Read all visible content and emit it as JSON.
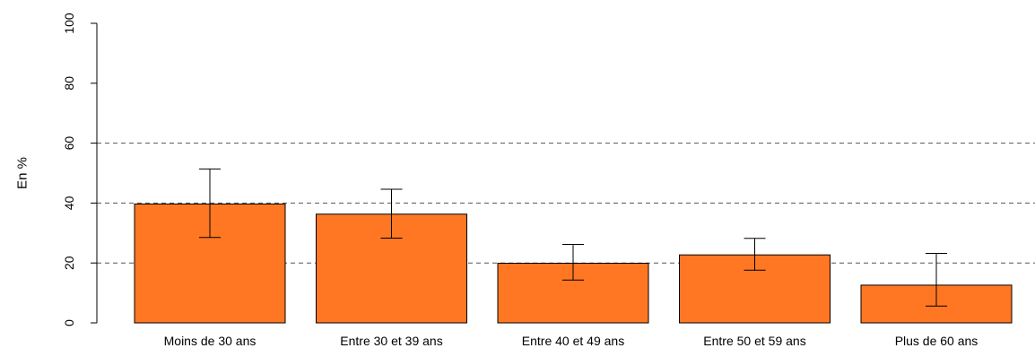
{
  "chart_data": {
    "type": "bar",
    "ylabel": "En %",
    "ylim": [
      0,
      100
    ],
    "yticks": [
      "0",
      "20",
      "40",
      "60",
      "80",
      "100"
    ],
    "gridlines_at": [
      20,
      40,
      60
    ],
    "grid_style": "dashed horizontal",
    "bar_color": "#FF7722",
    "categories": [
      "Moins de 30 ans",
      "Entre 30 et 39 ans",
      "Entre 40 et 49 ans",
      "Entre 50 et 59 ans",
      "Plus de 60 ans"
    ],
    "values": [
      39.7,
      36.3,
      19.9,
      22.7,
      12.6
    ],
    "error_low": [
      28.5,
      28.3,
      14.3,
      17.6,
      5.6
    ],
    "error_high": [
      51.4,
      44.6,
      26.2,
      28.2,
      23.2
    ]
  }
}
